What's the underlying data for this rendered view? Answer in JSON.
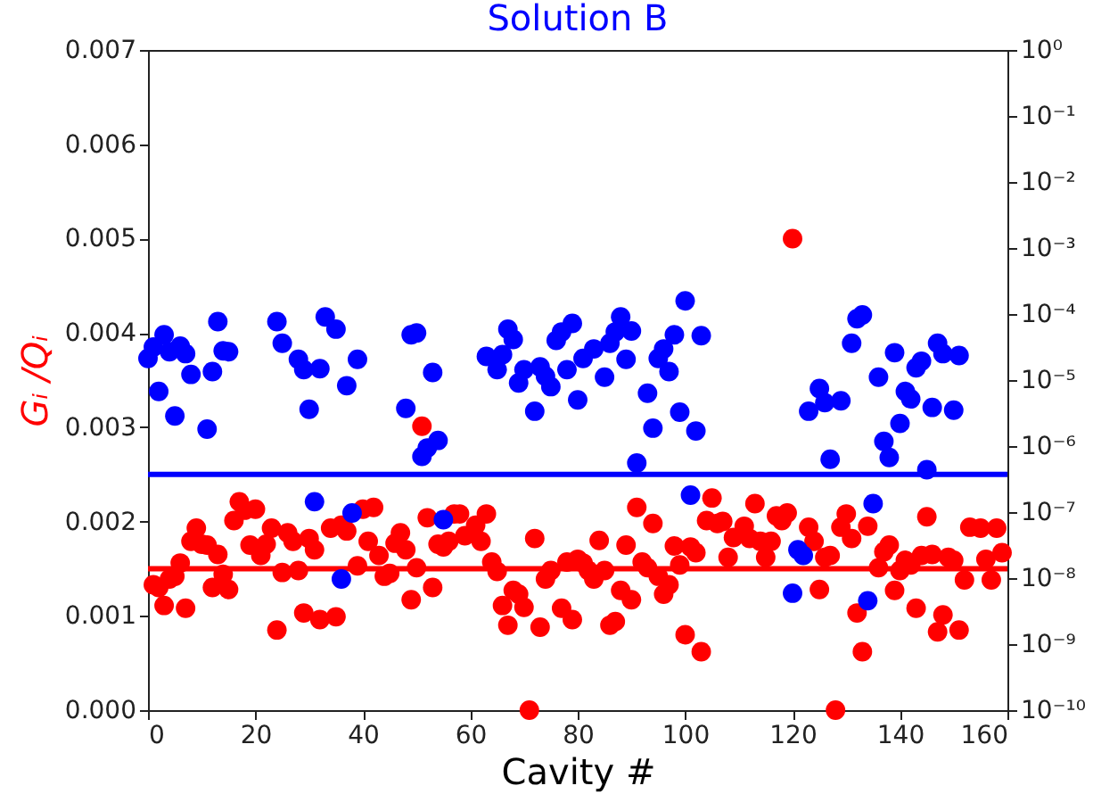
{
  "chart_data": {
    "type": "scatter",
    "title": "Solution B",
    "xlabel": "Cavity #",
    "ylabel": "Gᵢ /Qᵢ",
    "xlim": [
      0,
      160
    ],
    "xticks": [
      0,
      20,
      40,
      60,
      80,
      100,
      120,
      140,
      160
    ],
    "ylim": [
      0,
      0.007
    ],
    "yticks": [
      {
        "value": 0,
        "label": "0.000"
      },
      {
        "value": 0.001,
        "label": "0.001"
      },
      {
        "value": 0.002,
        "label": "0.002"
      },
      {
        "value": 0.003,
        "label": "0.003"
      },
      {
        "value": 0.004,
        "label": "0.004"
      },
      {
        "value": 0.005,
        "label": "0.005"
      },
      {
        "value": 0.006,
        "label": "0.006"
      },
      {
        "value": 0.007,
        "label": "0.007"
      }
    ],
    "y2lim": [
      1e-10,
      1
    ],
    "y2ticks": [
      {
        "value": 1e-10,
        "label": "10⁻¹⁰"
      },
      {
        "value": 1e-09,
        "label": "10⁻⁹"
      },
      {
        "value": 1e-08,
        "label": "10⁻⁸"
      },
      {
        "value": 1e-07,
        "label": "10⁻⁷"
      },
      {
        "value": 1e-06,
        "label": "10⁻⁶"
      },
      {
        "value": 1e-05,
        "label": "10⁻⁵"
      },
      {
        "value": 0.0001,
        "label": "10⁻⁴"
      },
      {
        "value": 0.001,
        "label": "10⁻³"
      },
      {
        "value": 0.01,
        "label": "10⁻²"
      },
      {
        "value": 0.1,
        "label": "10⁻¹"
      },
      {
        "value": 1,
        "label": "10⁰"
      }
    ],
    "marker": "circle",
    "grid": false,
    "log": "y2",
    "series": [
      {
        "color": "#0000ff",
        "x": [
          0,
          1,
          2,
          3,
          4,
          5,
          6,
          7,
          8,
          11,
          12,
          13,
          14,
          15,
          24,
          25,
          28,
          29,
          30,
          31,
          32,
          33,
          35,
          36,
          37,
          38,
          39,
          48,
          49,
          50,
          51,
          52,
          53,
          54,
          55,
          63,
          65,
          66,
          67,
          68,
          69,
          70,
          72,
          73,
          74,
          75,
          76,
          77,
          78,
          79,
          80,
          81,
          83,
          85,
          86,
          87,
          88,
          89,
          90,
          91,
          93,
          94,
          95,
          96,
          97,
          98,
          99,
          100,
          101,
          102,
          103,
          120,
          121,
          122,
          123,
          125,
          126,
          127,
          129,
          131,
          132,
          133,
          134,
          135,
          136,
          137,
          138,
          139,
          140,
          141,
          142,
          143,
          144,
          145,
          146,
          147,
          148,
          150,
          151
        ],
        "values": [
          0.00373,
          0.00385,
          0.00338,
          0.00398,
          0.0038,
          0.00312,
          0.00386,
          0.00378,
          0.00356,
          0.00298,
          0.00359,
          0.00412,
          0.00381,
          0.0038,
          0.00412,
          0.00389,
          0.00372,
          0.00361,
          0.00319,
          0.00221,
          0.00362,
          0.00417,
          0.00404,
          0.00139,
          0.00344,
          0.00209,
          0.00372,
          0.0032,
          0.00398,
          0.004,
          0.00269,
          0.00278,
          0.00358,
          0.00286,
          0.00202,
          0.00375,
          0.00361,
          0.00377,
          0.00404,
          0.00393,
          0.00347,
          0.00361,
          0.00317,
          0.00364,
          0.00354,
          0.00343,
          0.00392,
          0.00401,
          0.00361,
          0.0041,
          0.00329,
          0.00373,
          0.00383,
          0.00353,
          0.00389,
          0.00401,
          0.00417,
          0.00372,
          0.00402,
          0.00262,
          0.00336,
          0.00299,
          0.00373,
          0.00383,
          0.00359,
          0.00398,
          0.00316,
          0.00434,
          0.00228,
          0.00296,
          0.00397,
          0.00124,
          0.0017,
          0.00164,
          0.00317,
          0.00341,
          0.00326,
          0.00266,
          0.00328,
          0.00389,
          0.00415,
          0.00419,
          0.00116,
          0.00219,
          0.00353,
          0.00285,
          0.00268,
          0.00379,
          0.00304,
          0.00338,
          0.0033,
          0.00363,
          0.0037,
          0.00255,
          0.00321,
          0.00389,
          0.00378,
          0.00318,
          0.00376
        ]
      },
      {
        "color": "#ff0000",
        "x": [
          1,
          2,
          3,
          4,
          5,
          6,
          7,
          8,
          9,
          10,
          11,
          12,
          13,
          14,
          15,
          16,
          17,
          18,
          19,
          20,
          21,
          22,
          23,
          24,
          25,
          26,
          27,
          28,
          29,
          30,
          31,
          32,
          34,
          35,
          36,
          37,
          39,
          40,
          41,
          42,
          43,
          44,
          45,
          46,
          47,
          48,
          49,
          50,
          51,
          52,
          53,
          54,
          55,
          56,
          57,
          58,
          59,
          61,
          62,
          63,
          64,
          65,
          66,
          67,
          68,
          69,
          70,
          71,
          72,
          73,
          74,
          75,
          77,
          78,
          79,
          80,
          81,
          82,
          83,
          84,
          85,
          86,
          87,
          88,
          89,
          90,
          91,
          92,
          93,
          94,
          95,
          96,
          97,
          98,
          99,
          100,
          101,
          102,
          103,
          104,
          105,
          106,
          107,
          108,
          109,
          111,
          112,
          113,
          114,
          115,
          116,
          117,
          118,
          119,
          120,
          123,
          124,
          125,
          126,
          127,
          128,
          129,
          130,
          131,
          132,
          133,
          134,
          136,
          137,
          138,
          139,
          140,
          141,
          142,
          143,
          144,
          145,
          146,
          147,
          148,
          149,
          150,
          151,
          152,
          153,
          155,
          156,
          157,
          158,
          159
        ],
        "values": [
          0.00133,
          0.0013,
          0.00111,
          0.00139,
          0.00142,
          0.00156,
          0.00108,
          0.00179,
          0.00193,
          0.00176,
          0.00175,
          0.0013,
          0.00165,
          0.00144,
          0.00128,
          0.00201,
          0.00221,
          0.00212,
          0.00175,
          0.00213,
          0.00164,
          0.00176,
          0.00193,
          0.00085,
          0.00146,
          0.00188,
          0.00179,
          0.00148,
          0.00103,
          0.00182,
          0.0017,
          0.00096,
          0.00193,
          0.00099,
          0.00196,
          0.0019,
          0.00153,
          0.00213,
          0.00179,
          0.00215,
          0.00164,
          0.00142,
          0.00145,
          0.00177,
          0.00188,
          0.0017,
          0.00117,
          0.00151,
          0.00301,
          0.00204,
          0.0013,
          0.00176,
          0.00173,
          0.00179,
          0.00208,
          0.00208,
          0.00185,
          0.00196,
          0.00179,
          0.00208,
          0.00157,
          0.00147,
          0.00111,
          0.0009,
          0.00127,
          0.00123,
          0.00109,
          0.0,
          0.00182,
          0.00088,
          0.00139,
          0.00148,
          0.00108,
          0.00157,
          0.00096,
          0.0016,
          0.00156,
          0.00148,
          0.00139,
          0.0018,
          0.00148,
          0.0009,
          0.00094,
          0.00127,
          0.00175,
          0.00117,
          0.00215,
          0.00157,
          0.00151,
          0.00198,
          0.00142,
          0.00123,
          0.00133,
          0.00174,
          0.00154,
          0.0008,
          0.00173,
          0.00167,
          0.00062,
          0.00201,
          0.00225,
          0.00198,
          0.002,
          0.00162,
          0.00183,
          0.00195,
          0.00182,
          0.00219,
          0.00179,
          0.00162,
          0.00179,
          0.00206,
          0.00201,
          0.00209,
          0.005,
          0.00194,
          0.00179,
          0.00128,
          0.00162,
          0.00164,
          0.0,
          0.00194,
          0.00208,
          0.00182,
          0.00103,
          0.00062,
          0.00195,
          0.00151,
          0.00168,
          0.00175,
          0.00127,
          0.00148,
          0.00159,
          0.00154,
          0.00108,
          0.00164,
          0.00205,
          0.00165,
          0.00083,
          0.00101,
          0.00162,
          0.00159,
          0.00085,
          0.00138,
          0.00194,
          0.00193,
          0.0016,
          0.00138,
          0.00193,
          0.00167
        ]
      }
    ],
    "ref_lines": [
      {
        "axis": "y",
        "value": 0.0025,
        "color": "#0000ff"
      },
      {
        "axis": "y",
        "value": 0.0015,
        "color": "#ff0000"
      }
    ]
  }
}
